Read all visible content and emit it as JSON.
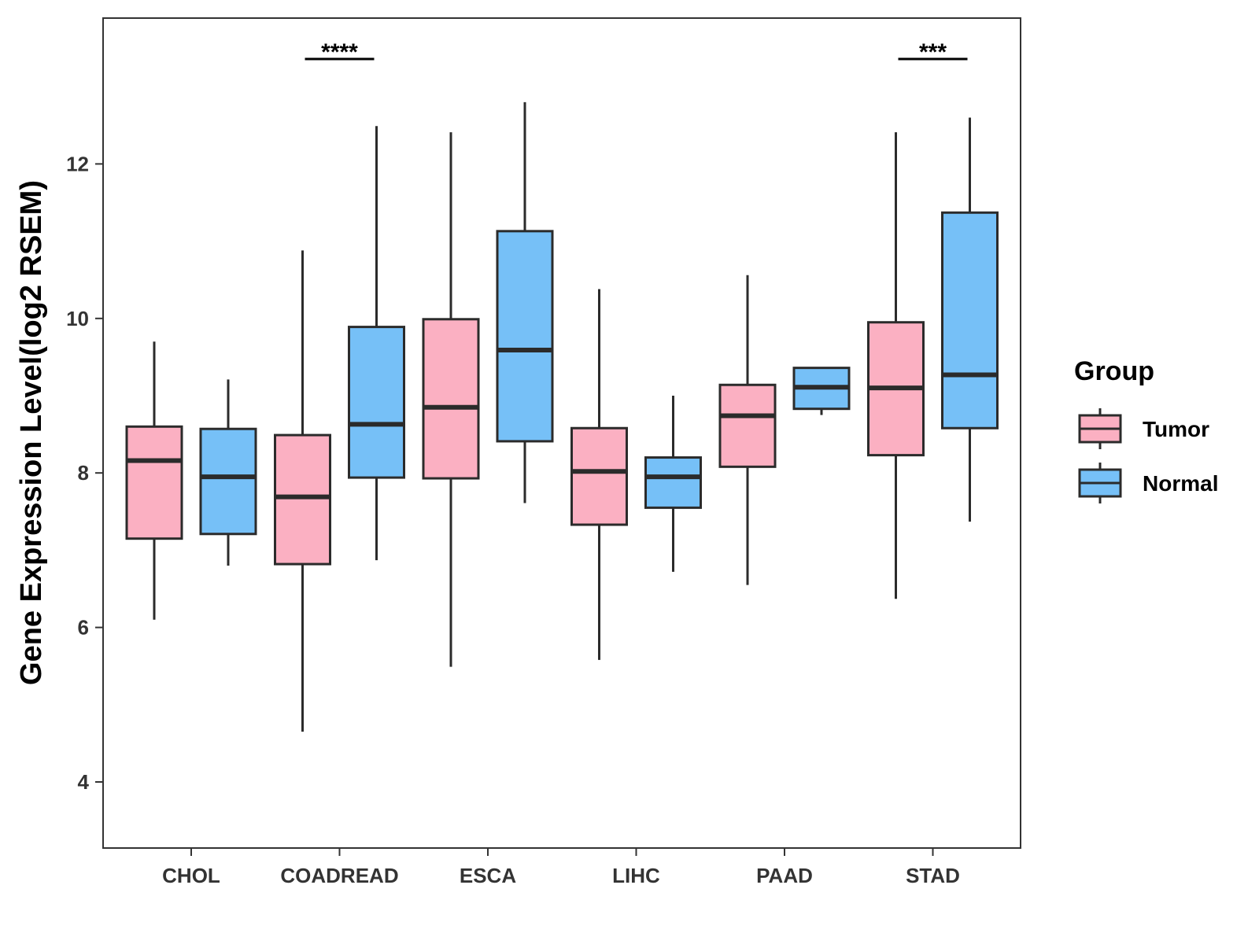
{
  "chart_data": {
    "type": "boxplot",
    "title": "",
    "xlabel": "",
    "ylabel": "Gene Expression Level(log2 RSEM)",
    "ylim": [
      3.2,
      13.8
    ],
    "yticks": [
      4,
      6,
      8,
      10,
      12
    ],
    "grid": false,
    "categories": [
      "CHOL",
      "COADREAD",
      "ESCA",
      "LIHC",
      "PAAD",
      "STAD"
    ],
    "legend": {
      "title": "Group",
      "position": "right",
      "entries": [
        {
          "name": "Tumor",
          "color": "#FBB0C2"
        },
        {
          "name": "Normal",
          "color": "#76C0F7"
        }
      ]
    },
    "series": [
      {
        "name": "Tumor",
        "color": "#FBB0C2",
        "boxes": [
          {
            "category": "CHOL",
            "min": 6.1,
            "q1": 7.15,
            "median": 8.16,
            "q3": 8.6,
            "max": 9.7
          },
          {
            "category": "COADREAD",
            "min": 4.65,
            "q1": 6.82,
            "median": 7.69,
            "q3": 8.49,
            "max": 10.88
          },
          {
            "category": "ESCA",
            "min": 5.49,
            "q1": 7.93,
            "median": 8.85,
            "q3": 9.99,
            "max": 12.41
          },
          {
            "category": "LIHC",
            "min": 5.58,
            "q1": 7.33,
            "median": 8.02,
            "q3": 8.58,
            "max": 10.38
          },
          {
            "category": "PAAD",
            "min": 6.55,
            "q1": 8.08,
            "median": 8.74,
            "q3": 9.14,
            "max": 10.56
          },
          {
            "category": "STAD",
            "min": 6.37,
            "q1": 8.23,
            "median": 9.1,
            "q3": 9.95,
            "max": 12.41
          }
        ]
      },
      {
        "name": "Normal",
        "color": "#76C0F7",
        "boxes": [
          {
            "category": "CHOL",
            "min": 6.8,
            "q1": 7.21,
            "median": 7.95,
            "q3": 8.57,
            "max": 9.21
          },
          {
            "category": "COADREAD",
            "min": 6.87,
            "q1": 7.94,
            "median": 8.63,
            "q3": 9.89,
            "max": 12.49
          },
          {
            "category": "ESCA",
            "min": 7.61,
            "q1": 8.41,
            "median": 9.59,
            "q3": 11.13,
            "max": 12.8
          },
          {
            "category": "LIHC",
            "min": 6.72,
            "q1": 7.55,
            "median": 7.95,
            "q3": 8.2,
            "max": 9.0
          },
          {
            "category": "PAAD",
            "min": 8.75,
            "q1": 8.83,
            "median": 9.11,
            "q3": 9.36,
            "max": 9.36
          },
          {
            "category": "STAD",
            "min": 7.37,
            "q1": 8.58,
            "median": 9.27,
            "q3": 11.37,
            "max": 12.6
          }
        ]
      }
    ],
    "annotations": [
      {
        "category": "COADREAD",
        "label": "****"
      },
      {
        "category": "STAD",
        "label": "***"
      }
    ]
  }
}
